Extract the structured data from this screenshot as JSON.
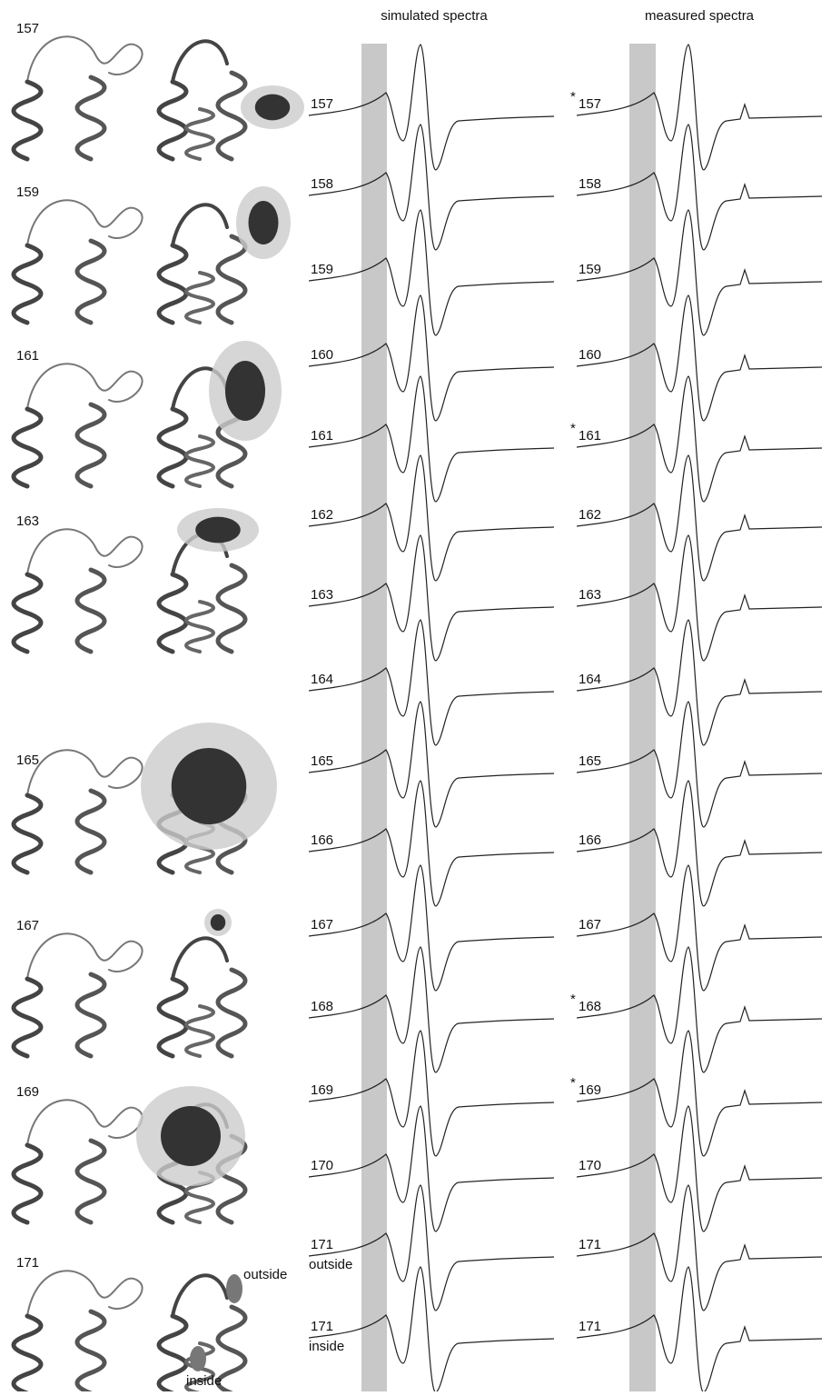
{
  "panels": [
    {
      "label": "157"
    },
    {
      "label": "159"
    },
    {
      "label": "161"
    },
    {
      "label": "163"
    },
    {
      "label": "165"
    },
    {
      "label": "167"
    },
    {
      "label": "169"
    },
    {
      "label": "171"
    }
  ],
  "protein_annotations": {
    "outside": "outside",
    "inside": "inside"
  },
  "simulated": {
    "title": "simulated spectra",
    "traces": [
      {
        "label": "157"
      },
      {
        "label": "158"
      },
      {
        "label": "159"
      },
      {
        "label": "160"
      },
      {
        "label": "161"
      },
      {
        "label": "162"
      },
      {
        "label": "163"
      },
      {
        "label": "164"
      },
      {
        "label": "165"
      },
      {
        "label": "166"
      },
      {
        "label": "167"
      },
      {
        "label": "168"
      },
      {
        "label": "169"
      },
      {
        "label": "170"
      },
      {
        "label": "171",
        "note": "outside"
      },
      {
        "label": "171",
        "note": "inside"
      }
    ]
  },
  "measured": {
    "title": "measured spectra",
    "traces": [
      {
        "label": "157",
        "marker": "*"
      },
      {
        "label": "158"
      },
      {
        "label": "159"
      },
      {
        "label": "160"
      },
      {
        "label": "161",
        "marker": "*"
      },
      {
        "label": "162"
      },
      {
        "label": "163"
      },
      {
        "label": "164"
      },
      {
        "label": "165"
      },
      {
        "label": "166"
      },
      {
        "label": "167"
      },
      {
        "label": "168",
        "marker": "*"
      },
      {
        "label": "169",
        "marker": "*"
      },
      {
        "label": "170"
      },
      {
        "label": "171"
      },
      {
        "label": "171"
      }
    ]
  }
}
